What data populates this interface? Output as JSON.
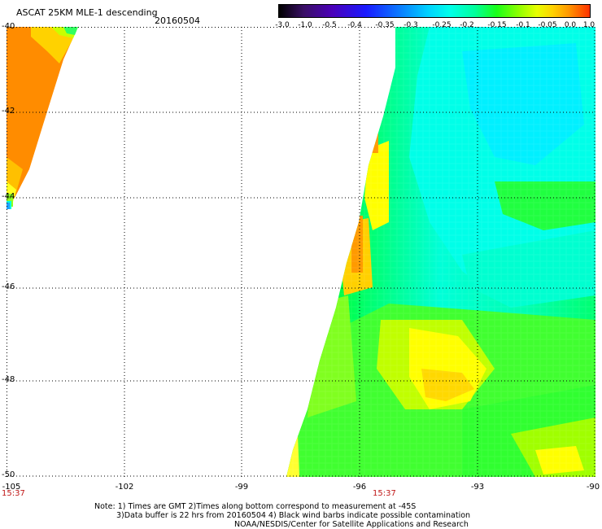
{
  "header": {
    "title": "ASCAT 25KM MLE-1 descending",
    "date": "20160504"
  },
  "colorbar": {
    "labels": [
      "-3.0",
      "-1.0",
      "-0.5",
      "-0.4",
      "-0.35",
      "-0.3",
      "-0.25",
      "-0.2",
      "-0.15",
      "-0.1",
      "-0.05",
      "0.0",
      "1.0"
    ]
  },
  "map": {
    "lat_labels": [
      "-40",
      "-42",
      "-44",
      "-46",
      "-48",
      "-50"
    ],
    "lon_labels": [
      "-105",
      "-102",
      "-99",
      "-96",
      "-93",
      "-90"
    ],
    "pass_times": [
      "15:37",
      "15:37"
    ],
    "colors": {
      "orange": "#ff8c00",
      "yellow": "#ffff00",
      "green": "#00ff00",
      "cyan": "#00ffff",
      "grid": "#000000"
    }
  },
  "footer": {
    "note1": "Note: 1) Times are GMT 2)Times along bottom correspond to measurement at -45S",
    "note2": "3)Data buffer is 22 hrs from 20160504 4) Black wind barbs indicate possible contamination",
    "note3": "NOAA/NESDIS/Center for Satellite Applications and Research"
  }
}
